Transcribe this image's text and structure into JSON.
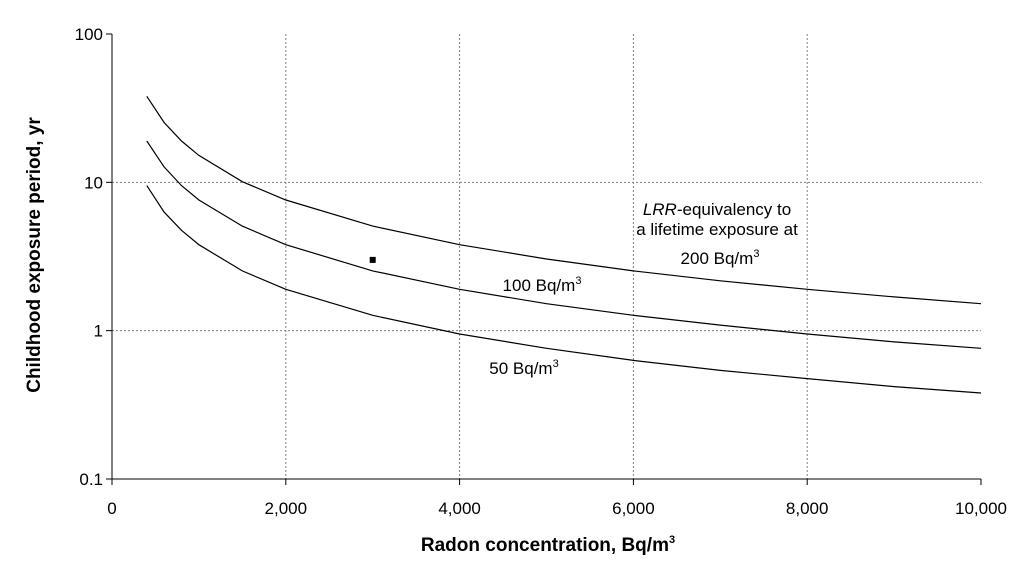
{
  "chart_data": {
    "type": "line",
    "xlabel": "Radon concentration, Bq/m",
    "xlabel_sup": "3",
    "ylabel": "Childhood exposure period, yr",
    "x_scale": "linear",
    "y_scale": "log",
    "xlim": [
      0,
      10000
    ],
    "ylim": [
      0.1,
      100
    ],
    "x_ticks": [
      0,
      2000,
      4000,
      6000,
      8000,
      10000
    ],
    "x_tick_labels": [
      "0",
      "2,000",
      "4,000",
      "6,000",
      "8,000",
      "10,000"
    ],
    "y_ticks": [
      0.1,
      1,
      10,
      100
    ],
    "y_tick_labels": [
      "0.1",
      "1",
      "10",
      "100"
    ],
    "grid": "dotted, major ticks",
    "legend": "none",
    "series": [
      {
        "name": "200 Bq/m3",
        "x": [
          400,
          600,
          800,
          1000,
          1500,
          2000,
          3000,
          4000,
          5000,
          6000,
          7000,
          8000,
          9000,
          10000
        ],
        "y": [
          38,
          25.3,
          19,
          15.2,
          10.1,
          7.6,
          5.07,
          3.8,
          3.04,
          2.53,
          2.17,
          1.9,
          1.69,
          1.52
        ]
      },
      {
        "name": "100 Bq/m3",
        "x": [
          400,
          600,
          800,
          1000,
          1500,
          2000,
          3000,
          4000,
          5000,
          6000,
          7000,
          8000,
          9000,
          10000
        ],
        "y": [
          19,
          12.7,
          9.5,
          7.6,
          5.07,
          3.8,
          2.53,
          1.9,
          1.52,
          1.27,
          1.09,
          0.95,
          0.84,
          0.76
        ]
      },
      {
        "name": "50 Bq/m3",
        "x": [
          400,
          600,
          800,
          1000,
          1500,
          2000,
          3000,
          4000,
          5000,
          6000,
          7000,
          8000,
          9000,
          10000
        ],
        "y": [
          9.5,
          6.3,
          4.75,
          3.8,
          2.53,
          1.9,
          1.27,
          0.95,
          0.76,
          0.63,
          0.54,
          0.475,
          0.42,
          0.38
        ]
      }
    ],
    "point": {
      "x": 3000,
      "y": 3
    },
    "annotations": {
      "line1_italic": "LRR",
      "line1_rest": "-equivalency to",
      "line2": "a lifetime exposure at",
      "label_200": "200 Bq/m",
      "label_100": "100 Bq/m",
      "label_50": "50 Bq/m",
      "sup": "3"
    }
  }
}
